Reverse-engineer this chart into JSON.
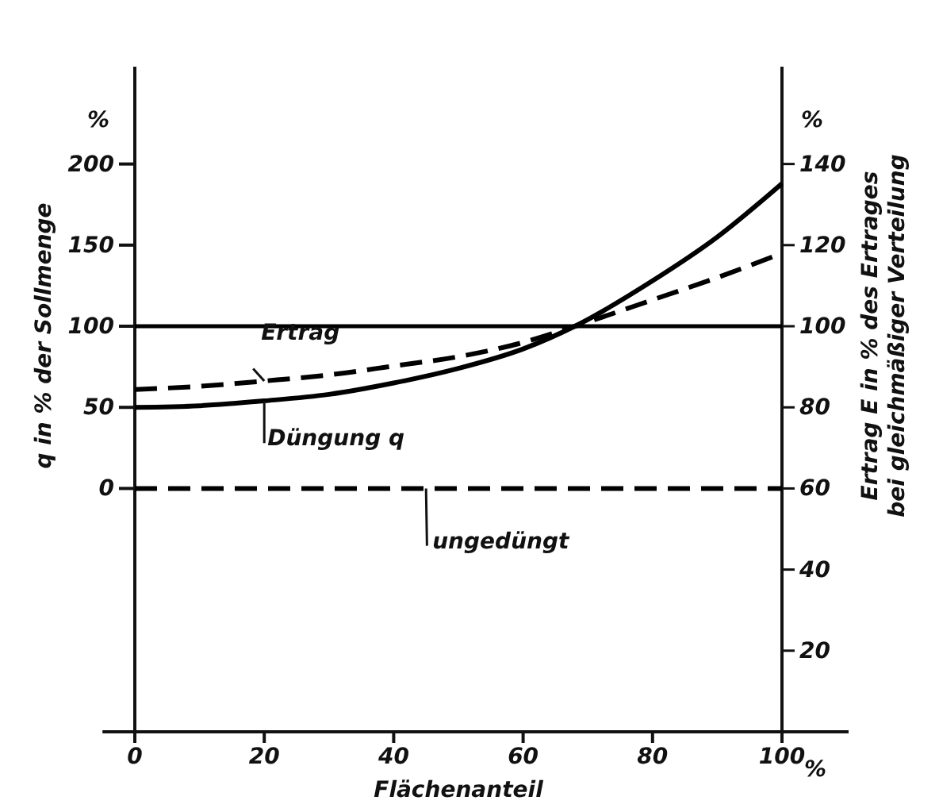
{
  "chart_data": {
    "type": "line",
    "xlabel": "Flächenanteil",
    "ylabel": "q in % der Sollmenge",
    "y2label": "Ertrag E in % des Ertrages bei gleichmäßiger Verteilung",
    "xlim": [
      -5,
      100
    ],
    "xticks": [
      0,
      20,
      40,
      60,
      80,
      100
    ],
    "ylim": [
      -150,
      260
    ],
    "yticks": [
      0,
      50,
      100,
      150,
      200
    ],
    "y2lim": [
      0,
      164
    ],
    "y2ticks": [
      20,
      40,
      60,
      80,
      100,
      120,
      140
    ],
    "series": [
      {
        "name": "Ertrag",
        "color": "#000000",
        "axis": "y2",
        "line_style": "dashed",
        "x": [
          0,
          10,
          20,
          30,
          40,
          50,
          60,
          68,
          80,
          90,
          100
        ],
        "values": [
          84.4,
          85.2,
          86.5,
          88,
          90.2,
          92.5,
          96,
          100,
          106.5,
          112,
          118
        ]
      },
      {
        "name": "Düngung q",
        "color": "#000000",
        "axis": "y",
        "line_style": "solid",
        "x": [
          0,
          10,
          20,
          30,
          40,
          50,
          60,
          68,
          80,
          90,
          100
        ],
        "values": [
          50,
          51,
          54,
          58,
          65,
          74,
          86,
          100,
          128,
          155,
          188
        ]
      },
      {
        "name": "ungedüngt",
        "color": "#000000",
        "axis": "y2",
        "line_style": "dashed",
        "x": [
          0,
          100
        ],
        "values": [
          60,
          60
        ]
      }
    ],
    "ref_lines": [
      {
        "axis": "y",
        "value": 100,
        "color": "#000000",
        "line_style": "solid"
      }
    ],
    "annotations": [
      "%",
      "%",
      "%"
    ],
    "legend": false,
    "marker": "none"
  }
}
